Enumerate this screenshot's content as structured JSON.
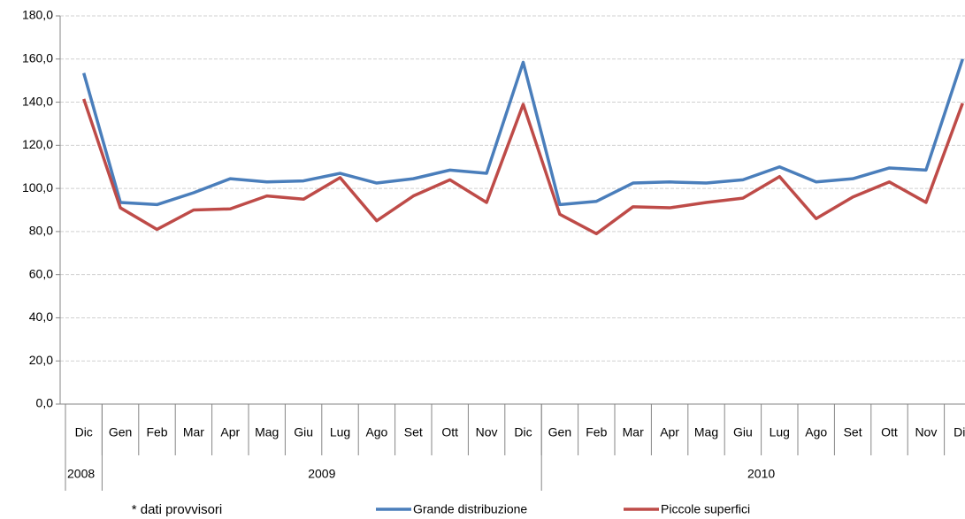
{
  "chart_data": {
    "type": "line",
    "note": "* dati provvisori",
    "categories": [
      "Dic",
      "Gen",
      "Feb",
      "Mar",
      "Apr",
      "Mag",
      "Giu",
      "Lug",
      "Ago",
      "Set",
      "Ott",
      "Nov",
      "Dic",
      "Gen",
      "Feb",
      "Mar",
      "Apr",
      "Mag",
      "Giu",
      "Lug",
      "Ago",
      "Set",
      "Ott",
      "Nov",
      "Dic"
    ],
    "category_groups": [
      {
        "label": "2008",
        "count": 1
      },
      {
        "label": "2009",
        "count": 12
      },
      {
        "label": "2010",
        "count": 12
      }
    ],
    "series": [
      {
        "name": "Grande distribuzione",
        "color": "#4a7ebb",
        "values": [
          153.5,
          93.5,
          92.5,
          98,
          104.5,
          103,
          103.5,
          107,
          102.5,
          104.5,
          108.5,
          107,
          158.5,
          92.5,
          94,
          102.5,
          103,
          102.5,
          104,
          110,
          103,
          104.5,
          109.5,
          108.5,
          160
        ]
      },
      {
        "name": "Piccole superfici",
        "color": "#be4b48",
        "values": [
          141.5,
          91,
          81,
          90,
          90.5,
          96.5,
          95,
          105,
          85,
          96.5,
          104,
          93.5,
          139,
          88,
          79,
          91.5,
          91,
          93.5,
          95.5,
          105.5,
          86,
          96,
          103,
          93.5,
          139.5
        ]
      }
    ],
    "ylim": [
      0,
      180
    ],
    "yticks": [
      {
        "value": 0,
        "label": "0,0"
      },
      {
        "value": 20,
        "label": "20,0"
      },
      {
        "value": 40,
        "label": "40,0"
      },
      {
        "value": 60,
        "label": "60,0"
      },
      {
        "value": 80,
        "label": "80,0"
      },
      {
        "value": 100,
        "label": "100,0"
      },
      {
        "value": 120,
        "label": "120,0"
      },
      {
        "value": 140,
        "label": "140,0"
      },
      {
        "value": 160,
        "label": "160,0"
      },
      {
        "value": 180,
        "label": "180,0"
      }
    ],
    "grid": true,
    "legend": "bottom"
  }
}
